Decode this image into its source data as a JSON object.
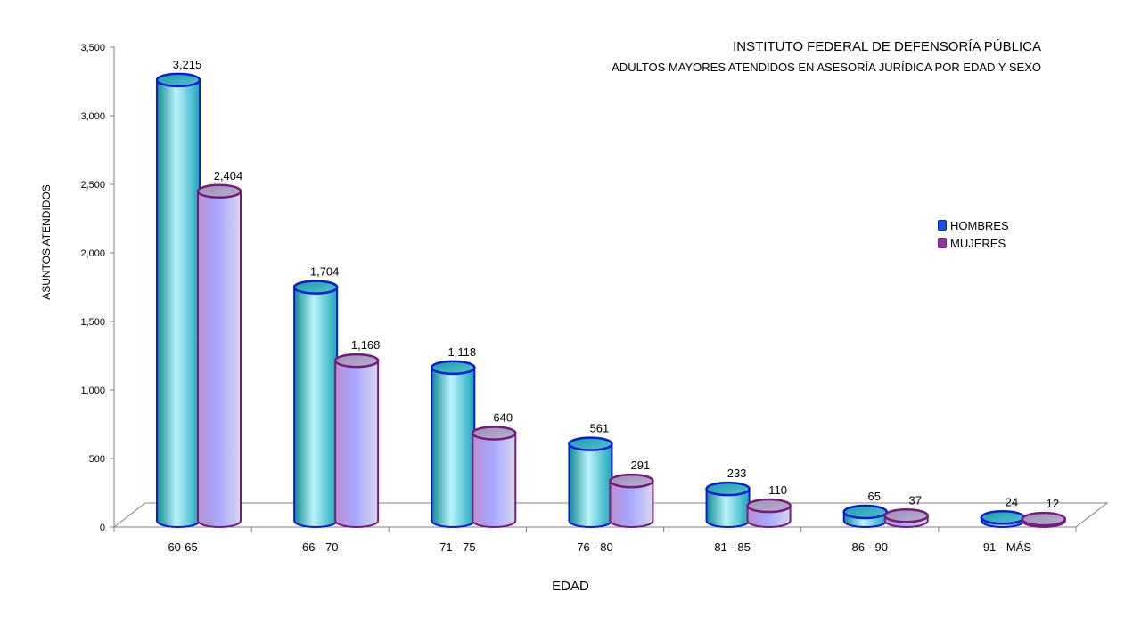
{
  "chart_data": {
    "type": "bar",
    "title": "INSTITUTO FEDERAL DE DEFENSORÍA PÚBLICA",
    "subtitle": "ADULTOS MAYORES ATENDIDOS EN ASESORÍA JURÍDICA POR EDAD Y SEXO",
    "xlabel": "EDAD",
    "ylabel": "ASUNTOS ATENDIDOS",
    "ylim": [
      0,
      3500
    ],
    "yticks": [
      "0",
      "500",
      "1,000",
      "1,500",
      "2,000",
      "2,500",
      "3,000",
      "3,500"
    ],
    "categories": [
      "60-65",
      "66 - 70",
      "71 - 75",
      "76 - 80",
      "81 - 85",
      "86 - 90",
      "91 - MÁS"
    ],
    "series": [
      {
        "name": "HOMBRES",
        "values": [
          3215,
          1704,
          1118,
          561,
          233,
          65,
          24
        ],
        "labels": [
          "3,215",
          "1,704",
          "1,118",
          "561",
          "233",
          "65",
          "24"
        ],
        "color": "#0a1bd8",
        "fill": "#22b3c8"
      },
      {
        "name": "MUJERES",
        "values": [
          2404,
          1168,
          640,
          291,
          110,
          37,
          12
        ],
        "labels": [
          "2,404",
          "1,168",
          "640",
          "291",
          "110",
          "37",
          "12"
        ],
        "color": "#7a1a7a",
        "fill": "#9e9cf5"
      }
    ],
    "legend_position": "right",
    "grid": false,
    "style": "3d-cylinder"
  }
}
